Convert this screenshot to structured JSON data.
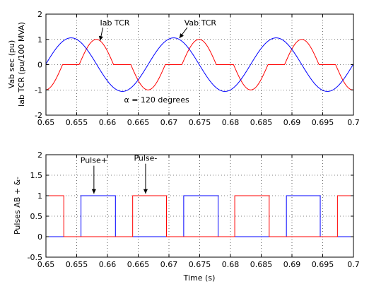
{
  "chart_data": [
    {
      "type": "line",
      "ylabel_lines": [
        "Vab sec (pu)",
        "Iab TCR (pu/100 MVA)"
      ],
      "xlim": [
        0.65,
        0.7
      ],
      "ylim": [
        -2,
        2
      ],
      "xticks": [
        "0.65",
        "0.655",
        "0.66",
        "0.665",
        "0.67",
        "0.675",
        "0.68",
        "0.685",
        "0.69",
        "0.695",
        "0.7"
      ],
      "yticks": [
        "-2",
        "-1",
        "0",
        "1",
        "2"
      ],
      "grid": true,
      "colors": {
        "vab": "#0000ff",
        "iab": "#ff0000"
      },
      "vab_model": {
        "amplitude": 1.06,
        "frequency_hz": 60,
        "peak_times": [
          0.6541,
          0.6708,
          0.6875
        ]
      },
      "iab_model": {
        "amplitude": 1.0,
        "peak_times": [
          0.6582,
          0.6749,
          0.6916
        ],
        "trough_times": [
          0.6499,
          0.6666,
          0.6833,
          0.6999
        ],
        "conduction_half_width": 0.0028
      },
      "annotations": [
        {
          "text": "Iab TCR",
          "x": 0.6588,
          "y": 1.55,
          "arrow_to": [
            0.6588,
            0.95
          ]
        },
        {
          "text": "Vab TCR",
          "x": 0.6725,
          "y": 1.55,
          "arrow_to": [
            0.6717,
            1.05
          ]
        },
        {
          "text": "α = 120 degrees",
          "x": 0.668,
          "y": -1.5
        }
      ]
    },
    {
      "type": "line",
      "ylabel": "Pulses AB + &-",
      "xlabel": "Time (s)",
      "xlim": [
        0.65,
        0.7
      ],
      "ylim": [
        -0.5,
        2
      ],
      "xticks": [
        "0.65",
        "0.655",
        "0.66",
        "0.665",
        "0.67",
        "0.675",
        "0.68",
        "0.685",
        "0.69",
        "0.695",
        "0.7"
      ],
      "yticks": [
        "-0.5",
        "0",
        "0.5",
        "1",
        "1.5",
        "2"
      ],
      "grid": true,
      "series": [
        {
          "name": "Pulse+",
          "color": "#0000ff",
          "on_intervals": [
            [
              0.6557,
              0.6613
            ],
            [
              0.6724,
              0.678
            ],
            [
              0.6891,
              0.6946
            ]
          ]
        },
        {
          "name": "Pulse-",
          "color": "#ff0000",
          "on_intervals": [
            [
              0.65,
              0.6529
            ],
            [
              0.6641,
              0.6696
            ],
            [
              0.6807,
              0.6863
            ],
            [
              0.6974,
              0.7
            ]
          ]
        }
      ],
      "annotations": [
        {
          "text": "Pulse+",
          "x": 0.6578,
          "y": 1.8,
          "arrow_to": [
            0.6578,
            1.05
          ]
        },
        {
          "text": "Pulse-",
          "x": 0.6662,
          "y": 1.85,
          "arrow_to": [
            0.6662,
            1.05
          ]
        }
      ]
    }
  ]
}
